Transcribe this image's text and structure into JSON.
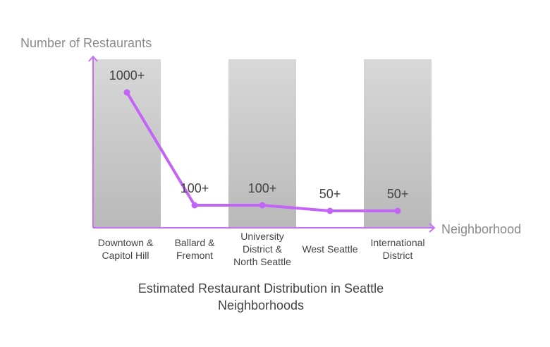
{
  "chart_data": {
    "type": "line",
    "title_lines": [
      "Estimated Restaurant Distribution in Seattle",
      "Neighborhoods"
    ],
    "xlabel": "Neighborhood",
    "ylabel": "Number of Restaurants",
    "categories": [
      [
        "Downtown &",
        "Capitol Hill"
      ],
      [
        "Ballard &",
        "Fremont"
      ],
      [
        "University",
        "District &",
        "North Seattle"
      ],
      [
        "West Seattle"
      ],
      [
        "International",
        "District"
      ]
    ],
    "values": [
      1000,
      100,
      100,
      50,
      50
    ],
    "value_labels": [
      "1000+",
      "100+",
      "100+",
      "50+",
      "50+"
    ],
    "background_bands": [
      true,
      false,
      true,
      false,
      true
    ],
    "grid": false,
    "legend": "none",
    "colors": {
      "line": "#c264f5",
      "axis": "#c86ff7",
      "band_top": "#d8d8d8",
      "band_bottom": "#b9b9b9"
    }
  }
}
